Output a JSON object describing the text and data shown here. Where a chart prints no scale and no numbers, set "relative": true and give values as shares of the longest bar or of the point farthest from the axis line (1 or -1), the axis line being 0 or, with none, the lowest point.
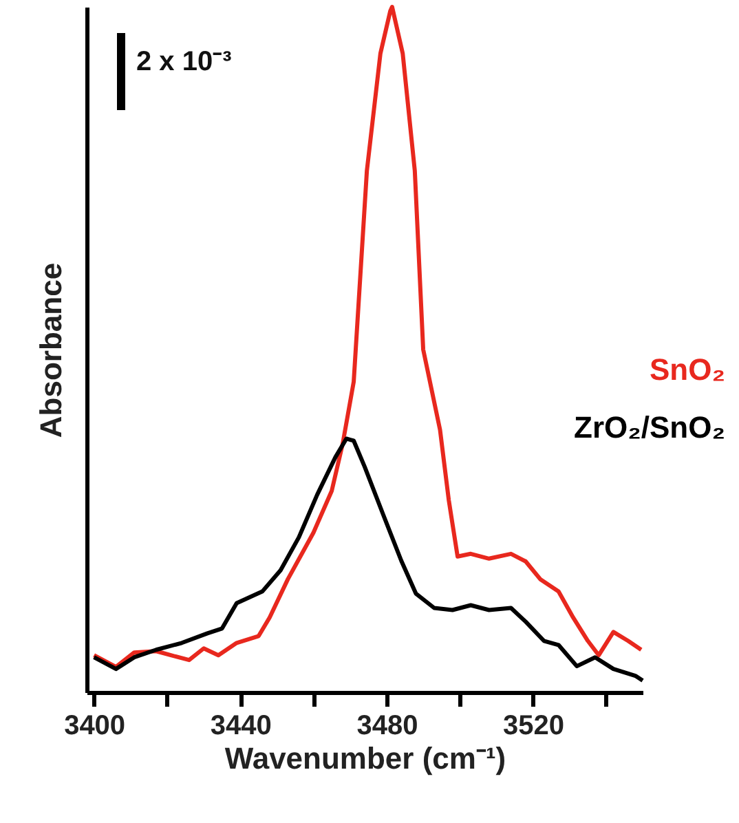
{
  "chart_data": {
    "type": "line",
    "xlabel": "Wavenumber (cm⁻¹)",
    "ylabel": "Absorbance",
    "relative": true,
    "xlim": [
      3398,
      3550
    ],
    "xticks": [
      3400,
      {
        "value": 3420,
        "label": null
      },
      3440,
      {
        "value": 3460,
        "label": null
      },
      3480,
      {
        "value": 3500,
        "label": null
      },
      3520,
      {
        "value": 3540,
        "label": null
      }
    ],
    "annotations": [
      "2 x 10⁻³"
    ],
    "legend": "right",
    "grid": false,
    "marker": "none",
    "line_style": "solid",
    "series": [
      {
        "name": "SnO₂",
        "color": "#e8281e",
        "x": [
          3400,
          3406,
          3411,
          3417,
          3421,
          3426,
          3430,
          3434,
          3439,
          3445,
          3448,
          3453,
          3460,
          3465,
          3468,
          3471,
          3474.6,
          3478.3,
          3481,
          3481.5,
          3484.4,
          3487.7,
          3490,
          3494.6,
          3497,
          3499.4,
          3503,
          3508,
          3514,
          3518,
          3522,
          3527,
          3531,
          3535,
          3538,
          3542,
          3546,
          3549.6
        ],
        "values": [
          0.054,
          0.037,
          0.058,
          0.06,
          0.054,
          0.047,
          0.064,
          0.054,
          0.072,
          0.082,
          0.109,
          0.165,
          0.233,
          0.294,
          0.363,
          0.453,
          0.761,
          0.932,
          0.994,
          1.0,
          0.932,
          0.761,
          0.5,
          0.383,
          0.28,
          0.198,
          0.202,
          0.195,
          0.202,
          0.191,
          0.165,
          0.147,
          0.109,
          0.075,
          0.054,
          0.088,
          0.075,
          0.062
        ]
      },
      {
        "name": "ZrO₂/SnO₂",
        "color": "#000000",
        "x": [
          3400,
          3406,
          3411,
          3417,
          3424,
          3431,
          3435,
          3439,
          3446,
          3451,
          3456,
          3461,
          3466,
          3469,
          3471,
          3474,
          3479,
          3484,
          3488,
          3493,
          3498,
          3503,
          3508,
          3514,
          3518,
          3523,
          3527,
          3532,
          3537,
          3542,
          3548,
          3550
        ],
        "values": [
          0.051,
          0.034,
          0.051,
          0.062,
          0.072,
          0.086,
          0.093,
          0.13,
          0.147,
          0.178,
          0.226,
          0.288,
          0.343,
          0.37,
          0.367,
          0.329,
          0.26,
          0.192,
          0.144,
          0.123,
          0.12,
          0.127,
          0.12,
          0.123,
          0.103,
          0.075,
          0.069,
          0.038,
          0.051,
          0.034,
          0.024,
          0.017
        ]
      }
    ]
  }
}
